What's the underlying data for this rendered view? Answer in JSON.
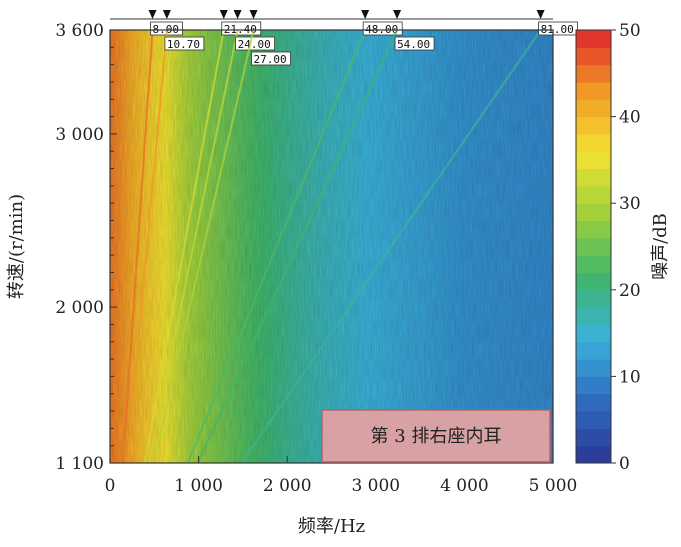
{
  "chart_data": {
    "type": "heatmap",
    "title": "",
    "xlabel": "频率/Hz",
    "ylabel": "转速/(r/min)",
    "colorbar_label": "噪声/dB",
    "xlim": [
      0,
      5000
    ],
    "ylim": [
      1100,
      3600
    ],
    "clim": [
      0,
      50
    ],
    "x_ticks": [
      0,
      1000,
      2000,
      3000,
      4000,
      5000
    ],
    "x_tick_labels": [
      "0",
      "1 000",
      "2 000",
      "3 000",
      "4 000",
      "5 000"
    ],
    "y_ticks": [
      1100,
      2000,
      3000,
      3600
    ],
    "y_tick_labels": [
      "1 100",
      "2 000",
      "3 000",
      "3 600"
    ],
    "colorbar_ticks": [
      0,
      10,
      20,
      30,
      40,
      50
    ],
    "colorbar_tick_labels": [
      "0",
      "10",
      "20",
      "30",
      "40",
      "50"
    ],
    "order_lines": [
      {
        "order": 8.0,
        "label": "8.00"
      },
      {
        "order": 10.7,
        "label": "10.70"
      },
      {
        "order": 21.4,
        "label": "21.40"
      },
      {
        "order": 24.0,
        "label": "24.00"
      },
      {
        "order": 27.0,
        "label": "27.00"
      },
      {
        "order": 48.0,
        "label": "48.00"
      },
      {
        "order": 54.0,
        "label": "54.00"
      },
      {
        "order": 81.0,
        "label": "81.00"
      }
    ],
    "noise_profile": {
      "frequency_hz": [
        0,
        100,
        300,
        600,
        900,
        1200,
        1500,
        2000,
        2500,
        3000,
        4000,
        5000
      ],
      "level_db": [
        45,
        44,
        40,
        36,
        29,
        26,
        23,
        19,
        16,
        14,
        11,
        10
      ]
    },
    "annotation": "第 3 排右座内耳",
    "colors": {
      "scale": [
        "#2b3595",
        "#2f6bc0",
        "#39b1d9",
        "#3fb56a",
        "#9ccf3c",
        "#f2e230",
        "#f19a25",
        "#e1262c"
      ],
      "label_box_fill": "#d8a1a3",
      "label_box_border": "#b46468"
    }
  }
}
